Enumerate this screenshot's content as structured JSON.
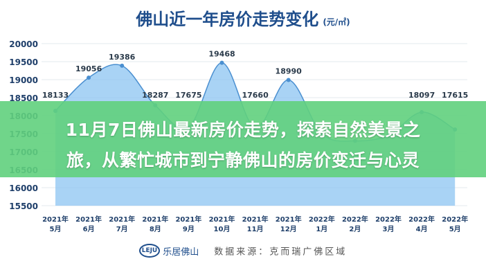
{
  "chart_data": {
    "type": "area",
    "title": "佛山近一年房价走势变化",
    "unit": "(元/㎡)",
    "categories": [
      "2021年\n5月",
      "2021年\n6月",
      "2021年\n7月",
      "2021年\n8月",
      "2021年\n9月",
      "2021年\n10月",
      "2021年\n11月",
      "2021年\n12月",
      "2022年\n1月",
      "2022年\n2月",
      "2022年\n3月",
      "2022年\n4月",
      "2022年\n5月"
    ],
    "values": [
      18133,
      19056,
      19386,
      18287,
      17675,
      19468,
      17660,
      18990,
      17500,
      17300,
      17450,
      18097,
      17615
    ],
    "data_labels": [
      "18133",
      "19056",
      "19386",
      "18287",
      "17675",
      "19468",
      "17660",
      "18990",
      "",
      "",
      "",
      "18097",
      "17615"
    ],
    "yticks": [
      15500,
      16000,
      16500,
      17000,
      17500,
      18000,
      18500,
      19000,
      19500,
      20000
    ],
    "ylim": [
      15500,
      20000
    ],
    "grid": true,
    "colors": {
      "fill": "#8cc4f2",
      "line": "#4a8fd0",
      "title": "#1f4e8c"
    }
  },
  "banner": {
    "line1": "11月7日佛山最新房价走势，探索自然美景之",
    "line2": "旅，从繁忙城市到宁静佛山的房价变迁与心灵"
  },
  "footer": {
    "logo": "LEJU",
    "brand": "乐居佛山",
    "source": "数据来源：克而瑞广佛区域"
  }
}
